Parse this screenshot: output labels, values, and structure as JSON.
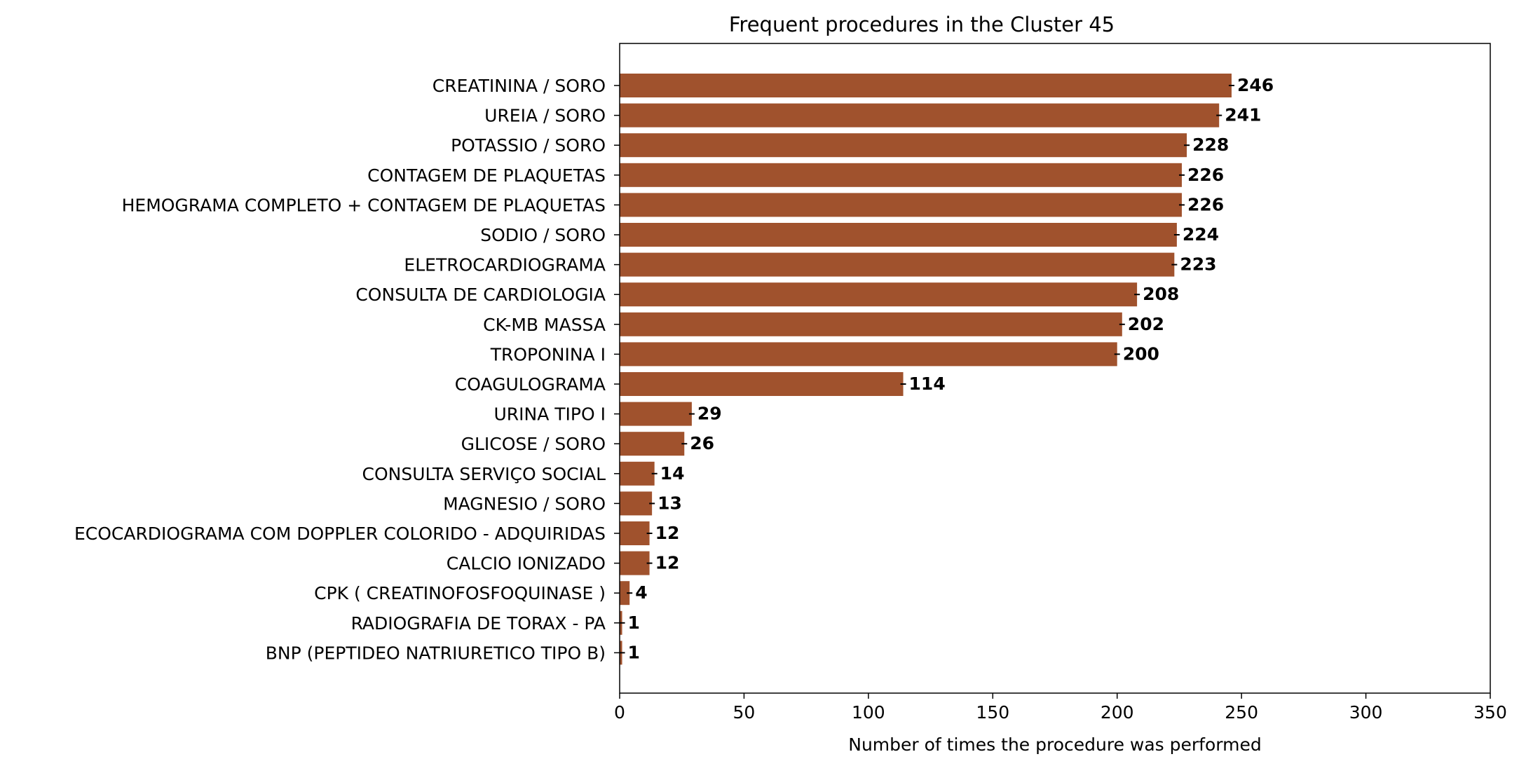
{
  "chart_data": {
    "type": "bar",
    "orientation": "horizontal",
    "title": "Frequent procedures in the Cluster  45",
    "xlabel": "Number of times the procedure was performed",
    "ylabel": "",
    "xlim": [
      0,
      350
    ],
    "xticks": [
      0,
      50,
      100,
      150,
      200,
      250,
      300,
      350
    ],
    "bar_color": "#a0522d",
    "grid": false,
    "categories": [
      "CREATININA / SORO",
      "UREIA / SORO",
      "POTASSIO / SORO",
      "CONTAGEM DE PLAQUETAS",
      "HEMOGRAMA COMPLETO + CONTAGEM DE PLAQUETAS",
      "SODIO / SORO",
      "ELETROCARDIOGRAMA",
      "CONSULTA DE CARDIOLOGIA",
      "CK-MB  MASSA",
      "TROPONINA I",
      "COAGULOGRAMA",
      "URINA TIPO I",
      "GLICOSE / SORO",
      "CONSULTA SERVIÇO SOCIAL",
      "MAGNESIO / SORO",
      "ECOCARDIOGRAMA COM DOPPLER COLORIDO - ADQUIRIDAS",
      "CALCIO IONIZADO",
      "CPK ( CREATINOFOSFOQUINASE )",
      "RADIOGRAFIA DE TORAX - PA",
      "BNP (PEPTIDEO NATRIURETICO TIPO B)"
    ],
    "values": [
      246,
      241,
      228,
      226,
      226,
      224,
      223,
      208,
      202,
      200,
      114,
      29,
      26,
      14,
      13,
      12,
      12,
      4,
      1,
      1
    ]
  }
}
